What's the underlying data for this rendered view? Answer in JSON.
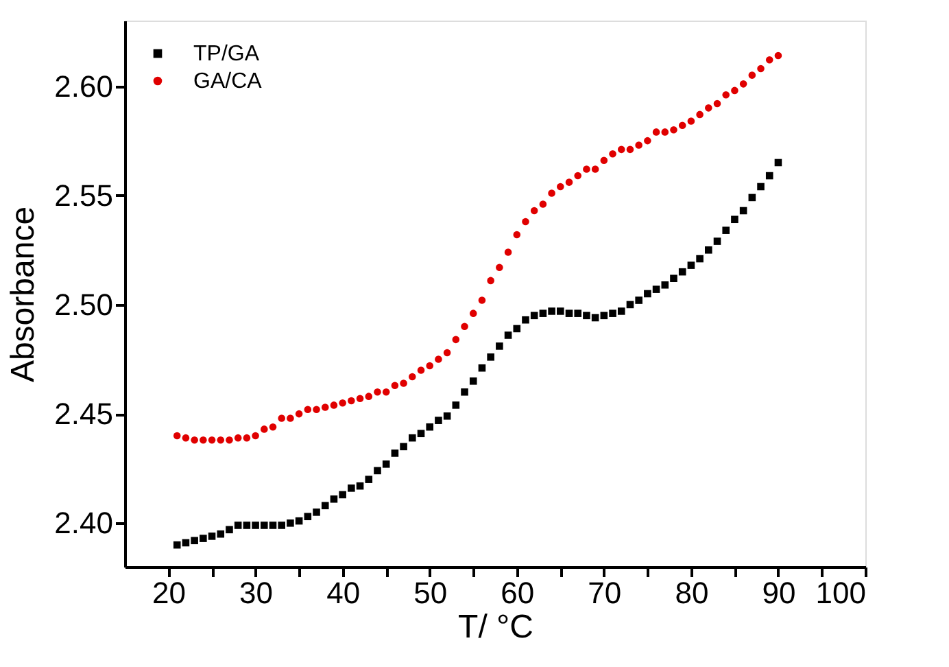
{
  "chart_data": {
    "type": "scatter",
    "xlabel": "T/ °C",
    "ylabel": "Absorbance",
    "x": [
      21,
      22,
      23,
      24,
      25,
      26,
      27,
      28,
      29,
      30,
      31,
      32,
      33,
      34,
      35,
      36,
      37,
      38,
      39,
      40,
      41,
      42,
      43,
      44,
      45,
      46,
      47,
      48,
      49,
      50,
      51,
      52,
      53,
      54,
      55,
      56,
      57,
      58,
      59,
      60,
      61,
      62,
      63,
      64,
      65,
      66,
      67,
      68,
      69,
      70,
      71,
      72,
      73,
      74,
      75,
      76,
      77,
      78,
      79,
      80,
      81,
      82,
      83,
      84,
      85,
      86,
      87,
      88,
      89,
      90
    ],
    "series": [
      {
        "name": "TP/GA",
        "color": "#000000",
        "marker": "square",
        "values": [
          2.39,
          2.391,
          2.392,
          2.393,
          2.394,
          2.395,
          2.397,
          2.399,
          2.399,
          2.399,
          2.399,
          2.399,
          2.399,
          2.4,
          2.401,
          2.403,
          2.405,
          2.408,
          2.411,
          2.413,
          2.416,
          2.417,
          2.42,
          2.424,
          2.427,
          2.432,
          2.435,
          2.439,
          2.441,
          2.444,
          2.447,
          2.449,
          2.454,
          2.46,
          2.465,
          2.471,
          2.476,
          2.481,
          2.486,
          2.489,
          2.493,
          2.495,
          2.496,
          2.497,
          2.497,
          2.496,
          2.496,
          2.495,
          2.494,
          2.495,
          2.496,
          2.497,
          2.5,
          2.502,
          2.505,
          2.507,
          2.509,
          2.512,
          2.515,
          2.518,
          2.521,
          2.525,
          2.529,
          2.534,
          2.539,
          2.543,
          2.549,
          2.554,
          2.559,
          2.565
        ]
      },
      {
        "name": "GA/CA",
        "color": "#e00000",
        "marker": "circle",
        "values": [
          2.44,
          2.439,
          2.438,
          2.438,
          2.438,
          2.438,
          2.438,
          2.439,
          2.439,
          2.44,
          2.443,
          2.444,
          2.448,
          2.448,
          2.45,
          2.452,
          2.452,
          2.453,
          2.454,
          2.455,
          2.456,
          2.457,
          2.458,
          2.46,
          2.46,
          2.463,
          2.464,
          2.467,
          2.47,
          2.472,
          2.475,
          2.478,
          2.484,
          2.49,
          2.496,
          2.502,
          2.511,
          2.517,
          2.524,
          2.532,
          2.538,
          2.543,
          2.546,
          2.551,
          2.554,
          2.556,
          2.559,
          2.562,
          2.562,
          2.566,
          2.569,
          2.571,
          2.571,
          2.573,
          2.575,
          2.579,
          2.579,
          2.58,
          2.582,
          2.584,
          2.587,
          2.59,
          2.592,
          2.596,
          2.598,
          2.601,
          2.605,
          2.608,
          2.612,
          2.614
        ]
      }
    ],
    "xlim": [
      15,
      100
    ],
    "xticks": [
      20,
      {
        "value": 25,
        "label": null
      },
      30,
      {
        "value": 35,
        "label": null
      },
      40,
      {
        "value": 45,
        "label": null
      },
      50,
      {
        "value": 55,
        "label": null
      },
      60,
      {
        "value": 65,
        "label": null
      },
      70,
      {
        "value": 75,
        "label": null
      },
      80,
      {
        "value": 85,
        "label": null
      },
      90,
      {
        "value": 95,
        "label": null
      },
      100
    ],
    "ylim": [
      2.38,
      2.63
    ],
    "yticks": [
      {
        "value": 2.4,
        "label": "2.40"
      },
      {
        "value": 2.45,
        "label": "2.45"
      },
      {
        "value": 2.5,
        "label": "2.50"
      },
      {
        "value": 2.55,
        "label": "2.55"
      },
      {
        "value": 2.6,
        "label": "2.60"
      }
    ],
    "grid": false,
    "legend": "top left"
  }
}
